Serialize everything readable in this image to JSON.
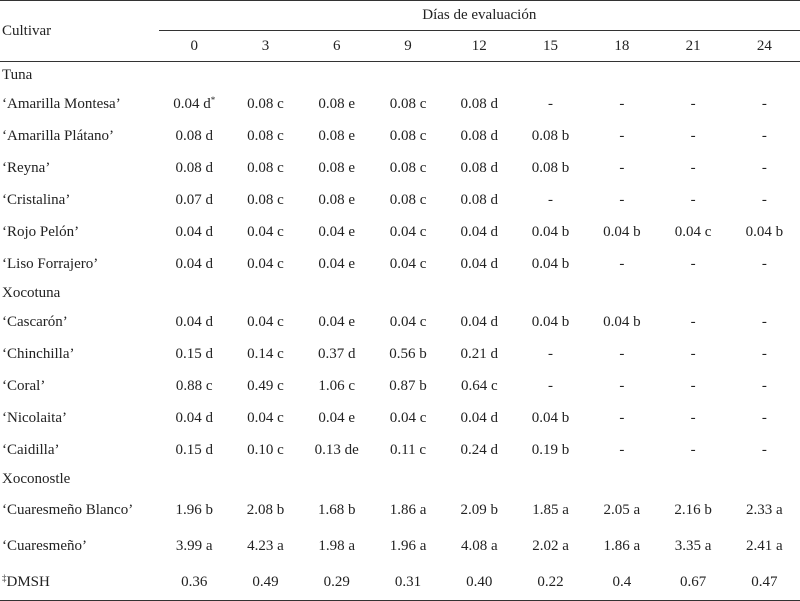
{
  "header": {
    "cultivar_label": "Cultivar",
    "days_label": "Días de evaluación",
    "days": [
      "0",
      "3",
      "6",
      "9",
      "12",
      "15",
      "18",
      "21",
      "24"
    ]
  },
  "groups": [
    {
      "label": "Tuna",
      "rows": [
        {
          "name": "‘Amarilla Montesa’",
          "values": [
            "0.04 d",
            "0.08 c",
            "0.08 e",
            "0.08 c",
            "0.08 d",
            "-",
            "-",
            "-",
            "-"
          ],
          "first_mark": "*"
        },
        {
          "name": "‘Amarilla Plátano’",
          "values": [
            "0.08 d",
            "0.08 c",
            "0.08 e",
            "0.08 c",
            "0.08 d",
            "0.08 b",
            "-",
            "-",
            "-"
          ]
        },
        {
          "name": "‘Reyna’",
          "values": [
            "0.08 d",
            "0.08 c",
            "0.08 e",
            "0.08 c",
            "0.08 d",
            "0.08 b",
            "-",
            "-",
            "-"
          ]
        },
        {
          "name": "‘Cristalina’",
          "values": [
            "0.07 d",
            "0.08 c",
            "0.08 e",
            "0.08 c",
            "0.08 d",
            "-",
            "-",
            "-",
            "-"
          ]
        },
        {
          "name": "‘Rojo Pelón’",
          "values": [
            "0.04 d",
            "0.04 c",
            "0.04 e",
            "0.04 c",
            "0.04 d",
            "0.04 b",
            "0.04 b",
            "0.04 c",
            "0.04 b"
          ]
        },
        {
          "name": "‘Liso Forrajero’",
          "values": [
            "0.04 d",
            "0.04 c",
            "0.04 e",
            "0.04 c",
            "0.04 d",
            "0.04 b",
            "-",
            "-",
            "-"
          ]
        }
      ]
    },
    {
      "label": "Xocotuna",
      "rows": [
        {
          "name": "‘Cascarón’",
          "values": [
            "0.04 d",
            "0.04 c",
            "0.04 e",
            "0.04 c",
            "0.04 d",
            "0.04 b",
            "0.04 b",
            "-",
            "-"
          ]
        },
        {
          "name": "‘Chinchilla’",
          "values": [
            "0.15 d",
            "0.14 c",
            "0.37 d",
            "0.56 b",
            "0.21 d",
            "-",
            "-",
            "-",
            "-"
          ]
        },
        {
          "name": "‘Coral’",
          "values": [
            "0.88 c",
            "0.49 c",
            "1.06 c",
            "0.87 b",
            "0.64 c",
            "-",
            "-",
            "-",
            "-"
          ]
        },
        {
          "name": "‘Nicolaita’",
          "values": [
            "0.04 d",
            "0.04 c",
            "0.04 e",
            "0.04 c",
            "0.04 d",
            "0.04 b",
            "-",
            "-",
            "-"
          ]
        },
        {
          "name": "‘Caidilla’",
          "values": [
            "0.15 d",
            "0.10 c",
            "0.13 de",
            "0.11 c",
            "0.24 d",
            "0.19 b",
            "-",
            "-",
            "-"
          ]
        }
      ]
    },
    {
      "label": "Xoconostle",
      "rows": [
        {
          "name": "‘Cuaresmeño Blanco’",
          "values": [
            "1.96 b",
            "2.08 b",
            "1.68 b",
            "1.86 a",
            "2.09 b",
            "1.85 a",
            "2.05 a",
            "2.16 b",
            "2.33 a"
          ]
        },
        {
          "name": "‘Cuaresmeño’",
          "values": [
            "3.99 a",
            "4.23 a",
            "1.98 a",
            "1.96 a",
            "4.08 a",
            "2.02 a",
            "1.86 a",
            "3.35 a",
            "2.41 a"
          ]
        }
      ]
    }
  ],
  "footer": {
    "mark": "‡",
    "label": "DMSH",
    "values": [
      "0.36",
      "0.49",
      "0.29",
      "0.31",
      "0.40",
      "0.22",
      "0.4",
      "0.67",
      "0.47"
    ]
  }
}
